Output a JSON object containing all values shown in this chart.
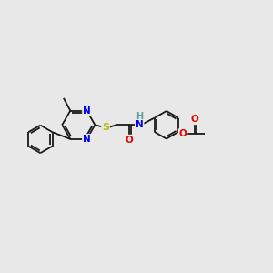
{
  "bg_color": "#e8e8e8",
  "bond_color": "#1a1a1a",
  "bond_width": 1.3,
  "atom_colors": {
    "N": "#0000ee",
    "S": "#bbbb00",
    "O": "#ee0000",
    "H": "#5f9ea0",
    "C": "#1a1a1a"
  },
  "font_size": 7.5,
  "fig_size": [
    3.0,
    3.0
  ],
  "dpi": 100,
  "xlim": [
    0,
    14
  ],
  "ylim": [
    0,
    14
  ]
}
